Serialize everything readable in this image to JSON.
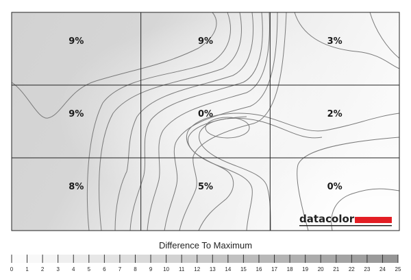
{
  "chart_data": {
    "type": "heatmap",
    "rows": 3,
    "cols": 3,
    "values": [
      [
        9,
        9,
        3
      ],
      [
        9,
        0,
        2
      ],
      [
        8,
        5,
        0
      ]
    ],
    "value_suffix": "%",
    "legend_title": "Difference To Maximum",
    "scale_ticks": [
      "0",
      "1",
      "2",
      "3",
      "4",
      "5",
      "6",
      "7",
      "8",
      "9",
      "10",
      "11",
      "12",
      "13",
      "14",
      "15",
      "16",
      "17",
      "18",
      "19",
      "20",
      "21",
      "22",
      "23",
      "24",
      "25"
    ],
    "scale_min": 0,
    "scale_max": 25
  },
  "brand": {
    "name": "datacolor",
    "accent_color": "#e31e24"
  }
}
